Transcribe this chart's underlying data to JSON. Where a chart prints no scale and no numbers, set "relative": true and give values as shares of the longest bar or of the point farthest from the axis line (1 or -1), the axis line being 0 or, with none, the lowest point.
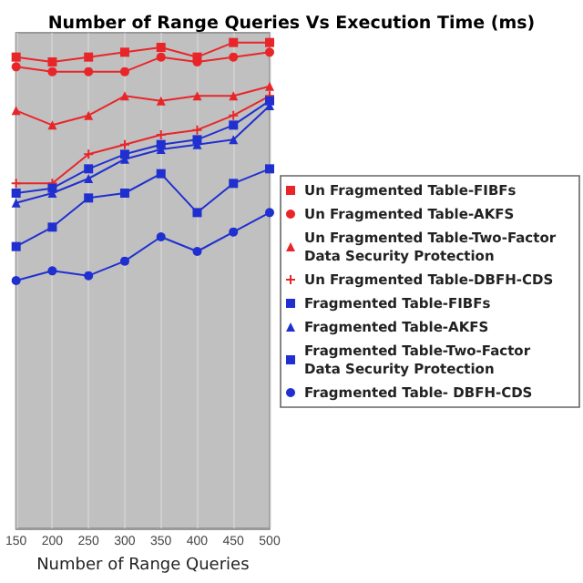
{
  "chart_data": {
    "type": "line",
    "title": "Number of Range Queries Vs Execution Time (ms)",
    "xlabel": "Number of Range Queries",
    "categories": [
      "150",
      "200",
      "250",
      "300",
      "350",
      "400",
      "450",
      "500"
    ],
    "relative": true,
    "grid": "x",
    "legend": "right",
    "series": [
      {
        "name": "Un Fragmented Table-FIBFs",
        "color": "#e8262a",
        "marker": "square",
        "values": [
          0.97,
          0.96,
          0.97,
          0.98,
          0.99,
          0.97,
          1.0,
          1.0
        ]
      },
      {
        "name": "Un Fragmented Table-AKFS",
        "color": "#e8262a",
        "marker": "circle",
        "values": [
          0.95,
          0.94,
          0.94,
          0.94,
          0.97,
          0.96,
          0.97,
          0.98
        ]
      },
      {
        "name": "Un Fragmented Table-Two-Factor Data Security Protection",
        "color": "#e8262a",
        "marker": "triangle",
        "values": [
          0.86,
          0.83,
          0.85,
          0.89,
          0.88,
          0.89,
          0.89,
          0.91
        ]
      },
      {
        "name": "Un Fragmented Table-DBFH-CDS",
        "color": "#e8262a",
        "marker": "cross",
        "values": [
          0.71,
          0.71,
          0.77,
          0.79,
          0.81,
          0.82,
          0.85,
          0.89
        ]
      },
      {
        "name": "Fragmented Table-FIBFs",
        "color": "#2030d0",
        "marker": "square",
        "values": [
          0.69,
          0.7,
          0.74,
          0.77,
          0.79,
          0.8,
          0.83,
          0.88
        ]
      },
      {
        "name": "Fragmented Table-AKFS",
        "color": "#2030d0",
        "marker": "triangle",
        "values": [
          0.67,
          0.69,
          0.72,
          0.76,
          0.78,
          0.79,
          0.8,
          0.87
        ]
      },
      {
        "name": "Fragmented Table-Two-Factor Data Security Protection",
        "color": "#2030d0",
        "marker": "square",
        "values": [
          0.58,
          0.62,
          0.68,
          0.69,
          0.73,
          0.65,
          0.71,
          0.74
        ]
      },
      {
        "name": "Fragmented Table- DBFH-CDS",
        "color": "#2030d0",
        "marker": "circle",
        "values": [
          0.51,
          0.53,
          0.52,
          0.55,
          0.6,
          0.57,
          0.61,
          0.65
        ]
      }
    ]
  }
}
